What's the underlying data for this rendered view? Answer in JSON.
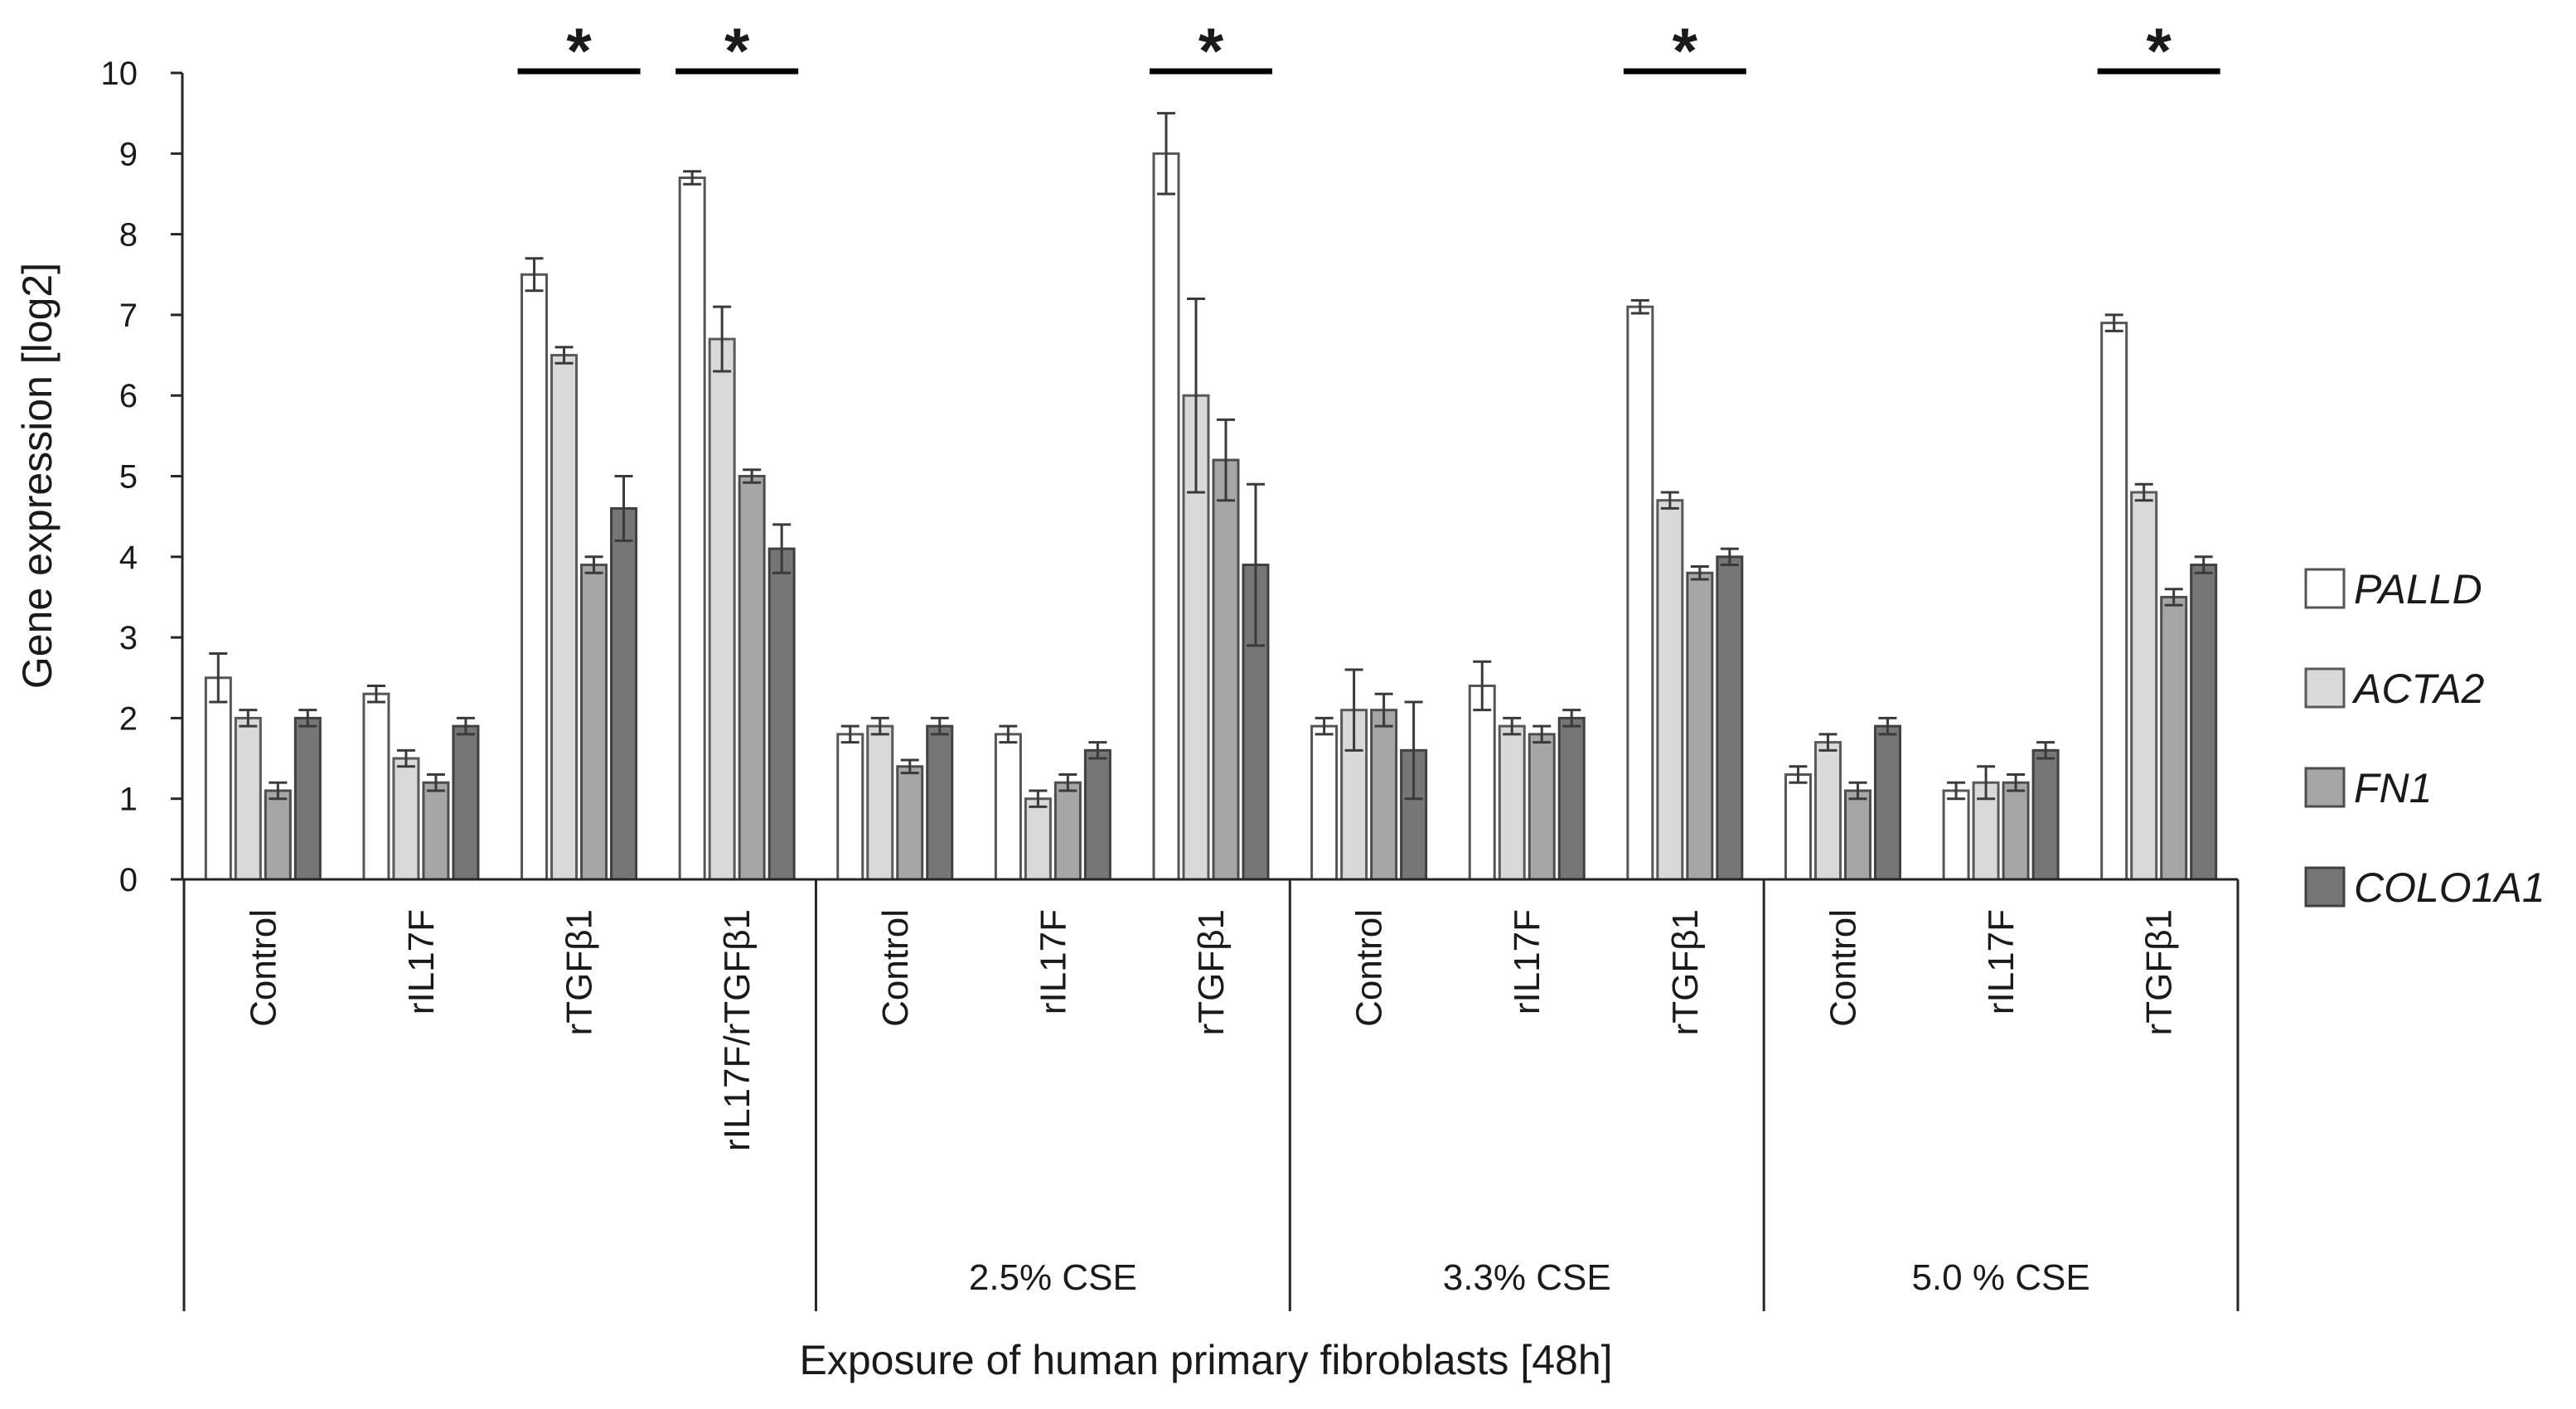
{
  "chart_data": {
    "type": "bar",
    "ylabel": "Gene expression [log2]",
    "xlabel": "Exposure of human primary fibroblasts [48h]",
    "ylim": [
      0,
      10
    ],
    "yticks": [
      "0",
      "1",
      "2",
      "3",
      "4",
      "5",
      "6",
      "7",
      "8",
      "9",
      "10"
    ],
    "categories": [
      "Control",
      "rIL17F",
      "rTGFβ1",
      "rIL17F/rTGFβ1",
      "Control",
      "rIL17F",
      "rTGFβ1",
      "Control",
      "rIL17F",
      "rTGFβ1",
      "Control",
      "rIL17F",
      "rTGFβ1"
    ],
    "groups": [
      {
        "label": "",
        "span": [
          0,
          3
        ]
      },
      {
        "label": "2.5% CSE",
        "span": [
          4,
          6
        ]
      },
      {
        "label": "3.3% CSE",
        "span": [
          7,
          9
        ]
      },
      {
        "label": "5.0 % CSE",
        "span": [
          10,
          12
        ]
      }
    ],
    "series": [
      {
        "name": "PALLD",
        "color": "#ffffff",
        "stroke": "#555555",
        "values": [
          2.5,
          2.3,
          7.5,
          8.7,
          1.8,
          1.8,
          9.0,
          1.9,
          2.4,
          7.1,
          1.3,
          1.1,
          6.9
        ],
        "errors": [
          0.3,
          0.1,
          0.2,
          0.08,
          0.1,
          0.1,
          0.5,
          0.1,
          0.3,
          0.08,
          0.1,
          0.1,
          0.1
        ]
      },
      {
        "name": "ACTA2",
        "color": "#d9d9d9",
        "stroke": "#595959",
        "values": [
          2.0,
          1.5,
          6.5,
          6.7,
          1.9,
          1.0,
          6.0,
          2.1,
          1.9,
          4.7,
          1.7,
          1.2,
          4.8
        ],
        "errors": [
          0.1,
          0.1,
          0.1,
          0.4,
          0.1,
          0.1,
          1.2,
          0.5,
          0.1,
          0.1,
          0.1,
          0.2,
          0.1
        ]
      },
      {
        "name": "FN1",
        "color": "#a6a6a6",
        "stroke": "#4d4d4d",
        "values": [
          1.1,
          1.2,
          3.9,
          5.0,
          1.4,
          1.2,
          5.2,
          2.1,
          1.8,
          3.8,
          1.1,
          1.2,
          3.5
        ],
        "errors": [
          0.1,
          0.1,
          0.1,
          0.08,
          0.08,
          0.1,
          0.5,
          0.2,
          0.1,
          0.08,
          0.1,
          0.1,
          0.1
        ]
      },
      {
        "name": "COLO1A1",
        "color": "#767676",
        "stroke": "#404040",
        "values": [
          2.0,
          1.9,
          4.6,
          4.1,
          1.9,
          1.6,
          3.9,
          1.6,
          2.0,
          4.0,
          1.9,
          1.6,
          3.9
        ],
        "errors": [
          0.1,
          0.1,
          0.4,
          0.3,
          0.1,
          0.1,
          1.0,
          0.6,
          0.1,
          0.1,
          0.1,
          0.1,
          0.1
        ]
      }
    ],
    "significance": {
      "symbol": "*",
      "marked_categories": [
        2,
        3,
        6,
        9,
        12
      ]
    },
    "legend": {
      "position": "right"
    }
  }
}
